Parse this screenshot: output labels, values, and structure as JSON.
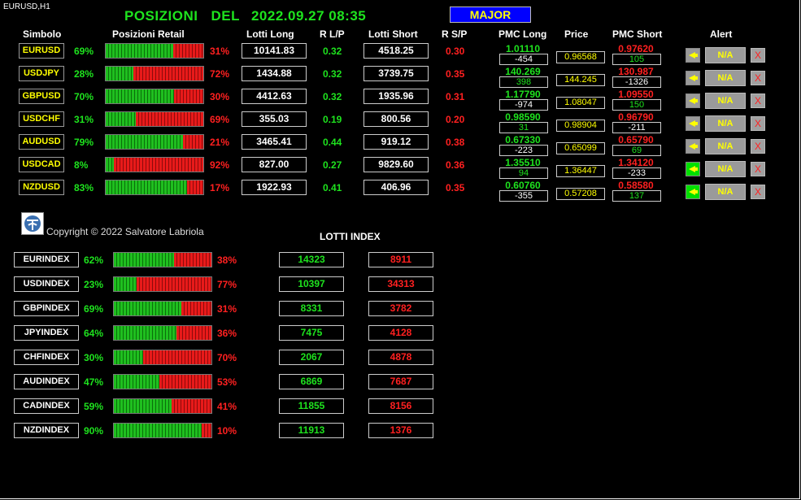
{
  "chart_label": "EURUSD,H1",
  "title": {
    "a": "POSIZIONI",
    "b": "DEL",
    "c": "2022.09.27 08:35"
  },
  "major_label": "MAJOR",
  "headers": {
    "simbolo": "Simbolo",
    "posizioni": "Posizioni Retail",
    "lotti_long": "Lotti Long",
    "rlp": "R L/P",
    "lotti_short": "Lotti Short",
    "rsp": "R S/P",
    "pmc_long": "PMC Long",
    "price": "Price",
    "pmc_short": "PMC Short",
    "alert": "Alert"
  },
  "pairs": [
    {
      "sym": "EURUSD",
      "long_pct": "69%",
      "long_frac": 0.69,
      "short_pct": "31%",
      "lotti_long": "10141.83",
      "rlp": "0.32",
      "lotti_short": "4518.25",
      "rsp": "0.30",
      "pmc_long": "1.01110",
      "pmc_long_diff": "-454",
      "price": "0.96568",
      "pmc_short": "0.97620",
      "pmc_short_diff": "105",
      "alert_on": false,
      "na": "N/A",
      "x": "X"
    },
    {
      "sym": "USDJPY",
      "long_pct": "28%",
      "long_frac": 0.28,
      "short_pct": "72%",
      "lotti_long": "1434.88",
      "rlp": "0.32",
      "lotti_short": "3739.75",
      "rsp": "0.35",
      "pmc_long": "140.269",
      "pmc_long_diff": "398",
      "price": "144.245",
      "pmc_short": "130.987",
      "pmc_short_diff": "-1326",
      "alert_on": false,
      "na": "N/A",
      "x": "X"
    },
    {
      "sym": "GBPUSD",
      "long_pct": "70%",
      "long_frac": 0.7,
      "short_pct": "30%",
      "lotti_long": "4412.63",
      "rlp": "0.32",
      "lotti_short": "1935.96",
      "rsp": "0.31",
      "pmc_long": "1.17790",
      "pmc_long_diff": "-974",
      "price": "1.08047",
      "pmc_short": "1.09550",
      "pmc_short_diff": "150",
      "alert_on": false,
      "na": "N/A",
      "x": "X"
    },
    {
      "sym": "USDCHF",
      "long_pct": "31%",
      "long_frac": 0.31,
      "short_pct": "69%",
      "lotti_long": "355.03",
      "rlp": "0.19",
      "lotti_short": "800.56",
      "rsp": "0.20",
      "pmc_long": "0.98590",
      "pmc_long_diff": "31",
      "price": "0.98904",
      "pmc_short": "0.96790",
      "pmc_short_diff": "-211",
      "alert_on": false,
      "na": "N/A",
      "x": "X"
    },
    {
      "sym": "AUDUSD",
      "long_pct": "79%",
      "long_frac": 0.79,
      "short_pct": "21%",
      "lotti_long": "3465.41",
      "rlp": "0.44",
      "lotti_short": "919.12",
      "rsp": "0.38",
      "pmc_long": "0.67330",
      "pmc_long_diff": "-223",
      "price": "0.65099",
      "pmc_short": "0.65790",
      "pmc_short_diff": "69",
      "alert_on": false,
      "na": "N/A",
      "x": "X"
    },
    {
      "sym": "USDCAD",
      "long_pct": "8%",
      "long_frac": 0.08,
      "short_pct": "92%",
      "lotti_long": "827.00",
      "rlp": "0.27",
      "lotti_short": "9829.60",
      "rsp": "0.36",
      "pmc_long": "1.35510",
      "pmc_long_diff": "94",
      "price": "1.36447",
      "pmc_short": "1.34120",
      "pmc_short_diff": "-233",
      "alert_on": true,
      "na": "N/A",
      "x": "X"
    },
    {
      "sym": "NZDUSD",
      "long_pct": "83%",
      "long_frac": 0.83,
      "short_pct": "17%",
      "lotti_long": "1922.93",
      "rlp": "0.41",
      "lotti_short": "406.96",
      "rsp": "0.35",
      "pmc_long": "0.60760",
      "pmc_long_diff": "-355",
      "price": "0.57208",
      "pmc_short": "0.58580",
      "pmc_short_diff": "137",
      "alert_on": true,
      "na": "N/A",
      "x": "X"
    }
  ],
  "copyright": "Copyright © 2022 Salvatore Labriola",
  "lotti_index_title": "LOTTI INDEX",
  "indexes": [
    {
      "name": "EURINDEX",
      "long_pct": "62%",
      "long_frac": 0.62,
      "short_pct": "38%",
      "long": "14323",
      "short": "8911"
    },
    {
      "name": "USDINDEX",
      "long_pct": "23%",
      "long_frac": 0.23,
      "short_pct": "77%",
      "long": "10397",
      "short": "34313"
    },
    {
      "name": "GBPINDEX",
      "long_pct": "69%",
      "long_frac": 0.69,
      "short_pct": "31%",
      "long": "8331",
      "short": "3782"
    },
    {
      "name": "JPYINDEX",
      "long_pct": "64%",
      "long_frac": 0.64,
      "short_pct": "36%",
      "long": "7475",
      "short": "4128"
    },
    {
      "name": "CHFINDEX",
      "long_pct": "30%",
      "long_frac": 0.3,
      "short_pct": "70%",
      "long": "2067",
      "short": "4878"
    },
    {
      "name": "AUDINDEX",
      "long_pct": "47%",
      "long_frac": 0.47,
      "short_pct": "53%",
      "long": "6869",
      "short": "7687"
    },
    {
      "name": "CADINDEX",
      "long_pct": "59%",
      "long_frac": 0.59,
      "short_pct": "41%",
      "long": "11855",
      "short": "8156"
    },
    {
      "name": "NZDINDEX",
      "long_pct": "90%",
      "long_frac": 0.9,
      "short_pct": "10%",
      "long": "11913",
      "short": "1376"
    }
  ]
}
